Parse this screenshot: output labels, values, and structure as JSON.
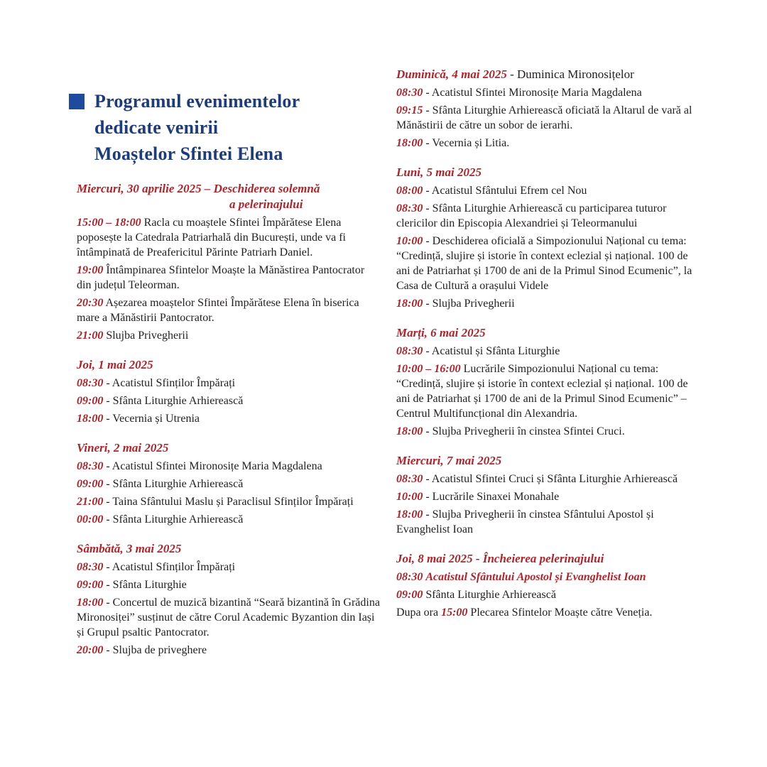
{
  "colors": {
    "background": "#ffffff",
    "title_blue": "#1d3c7d",
    "accent_blue": "#1e4b9e",
    "heading_red": "#b22329",
    "body_text": "#221e1f"
  },
  "title": {
    "line1": "Programul evenimentelor",
    "line2": "dedicate venirii",
    "line3": "Moaștelor Sfintei Elena"
  },
  "columns": [
    {
      "name": "left",
      "sections": [
        {
          "heading": {
            "red": "Miercuri, 30 aprilie 2025 – Deschiderea solemnă",
            "subline": "a pelerinajului"
          },
          "items": [
            {
              "time": "15:00 – 18:00",
              "sep": " ",
              "text": "Racla cu moaștele Sfintei Împărătese Elena poposește la Catedrala Patriarhală din București, unde va fi întâmpinată de Preafericitul Părinte Patriarh Daniel."
            },
            {
              "time": "19:00",
              "sep": " ",
              "text": "Întâmpinarea Sfintelor Moaște la Mănăstirea Pantocrator din județul Teleorman."
            },
            {
              "time": "20:30",
              "sep": " ",
              "text": "Așezarea moaștelor Sfintei Împărătese Elena în biserica mare a Mănăstirii Pantocrator."
            },
            {
              "time": "21:00",
              "sep": " ",
              "text": "Slujba Privegherii"
            }
          ]
        },
        {
          "heading": {
            "red": "Joi, 1 mai 2025"
          },
          "items": [
            {
              "time": "08:30",
              "sep": " - ",
              "text": "Acatistul Sfinților Împărați"
            },
            {
              "time": "09:00",
              "sep": " - ",
              "text": "Sfânta Liturghie Arhierească"
            },
            {
              "time": "18:00",
              "sep": " - ",
              "text": "Vecernia și Utrenia"
            }
          ]
        },
        {
          "heading": {
            "red": "Vineri, 2 mai 2025"
          },
          "items": [
            {
              "time": "08:30",
              "sep": " - ",
              "text": "Acatistul Sfintei Mironosițe Maria Magdalena"
            },
            {
              "time": "09:00",
              "sep": " - ",
              "text": "Sfânta Liturghie Arhierească"
            },
            {
              "time": "21:00",
              "sep": " - ",
              "text": "Taina Sfântului Maslu și Paraclisul Sfinților Împărați"
            },
            {
              "time": "00:00",
              "sep": " - ",
              "text": "Sfânta Liturghie Arhierească"
            }
          ]
        },
        {
          "heading": {
            "red": "Sâmbătă, 3 mai 2025"
          },
          "items": [
            {
              "time": "08:30",
              "sep": " - ",
              "text": "Acatistul Sfinților Împărați"
            },
            {
              "time": "09:00",
              "sep": " - ",
              "text": "Sfânta Liturghie"
            },
            {
              "time": "18:00",
              "sep": " - ",
              "text": "Concertul de muzică bizantină “Seară bizantină în Grădina Mironosiței” susținut de către Corul Academic Byzantion din Iași și Grupul psaltic Pantocrator."
            },
            {
              "time": "20:00",
              "sep": " - ",
              "text": "Slujba de priveghere"
            }
          ]
        }
      ]
    },
    {
      "name": "right",
      "sections": [
        {
          "heading": {
            "red": "Duminică, 4 mai 2025",
            "black": " - Duminica Mironosițelor"
          },
          "items": [
            {
              "time": "08:30",
              "sep": " - ",
              "text": "Acatistul Sfintei Mironosițe Maria Magdalena"
            },
            {
              "time": "09:15",
              "sep": " - ",
              "text": "Sfânta Liturghie Arhierească oficiată la Altarul de vară al Mănăstirii de către un sobor de ierarhi."
            },
            {
              "time": "18:00",
              "sep": " - ",
              "text": "Vecernia și Litia."
            }
          ]
        },
        {
          "heading": {
            "red": "Luni, 5 mai 2025"
          },
          "items": [
            {
              "time": "08:00",
              "sep": " - ",
              "text": "Acatistul Sfântului Efrem cel Nou"
            },
            {
              "time": "08:30",
              "sep": " - ",
              "text": "Sfânta Liturghie Arhierească cu participarea tuturor clericilor din Episcopia Alexandriei și Teleormanului"
            },
            {
              "time": "10:00",
              "sep": " - ",
              "text": "Deschiderea oficială a Simpozionului Național cu tema: “Credință, slujire și istorie în context eclezial și național. 100 de ani de Patriarhat și 1700 de ani de la Primul Sinod Ecumenic”, la Casa de Cultură a orașului Videle"
            },
            {
              "time": "18:00",
              "sep": " - ",
              "text": "Slujba Privegherii"
            }
          ]
        },
        {
          "heading": {
            "red": "Marți, 6 mai 2025"
          },
          "items": [
            {
              "time": "08:30",
              "sep": " - ",
              "text": "Acatistul și Sfânta Liturghie"
            },
            {
              "time": "10:00 – 16:00",
              "sep": " ",
              "text": "Lucrările Simpozionului Național cu tema: “Credință, slujire și istorie în context eclezial și național. 100 de ani de Patriarhat și 1700 de ani de la Primul Sinod Ecumenic” – Centrul Multifuncțional din Alexandria."
            },
            {
              "time": "18:00",
              "sep": " - ",
              "text": "Slujba Privegherii în cinstea Sfintei Cruci."
            }
          ]
        },
        {
          "heading": {
            "red": "Miercuri, 7 mai 2025"
          },
          "items": [
            {
              "time": "08:30",
              "sep": " - ",
              "text": "Acatistul Sfintei Cruci și Sfânta Liturghie Arhierească"
            },
            {
              "time": "10:00",
              "sep": " - ",
              "text": "Lucrările Sinaxei Monahale"
            },
            {
              "time": "18:00",
              "sep": " - ",
              "text": "Slujba Privegherii în cinstea Sfântului Apostol și Evanghelist Ioan"
            }
          ]
        },
        {
          "heading": {
            "red": "Joi, 8 mai 2025 - Încheierea pelerinajului"
          },
          "items": [
            {
              "time": "08:30",
              "sep": " ",
              "red_text": "Acatistul Sfântului Apostol și Evanghelist Ioan"
            },
            {
              "time": "09:00",
              "sep": " ",
              "text": "Sfânta Liturghie Arhierească"
            },
            {
              "prefix": "Dupa ora ",
              "time": "15:00",
              "sep": " ",
              "text": "Plecarea Sfintelor Moaște către Veneția."
            }
          ]
        }
      ]
    }
  ]
}
